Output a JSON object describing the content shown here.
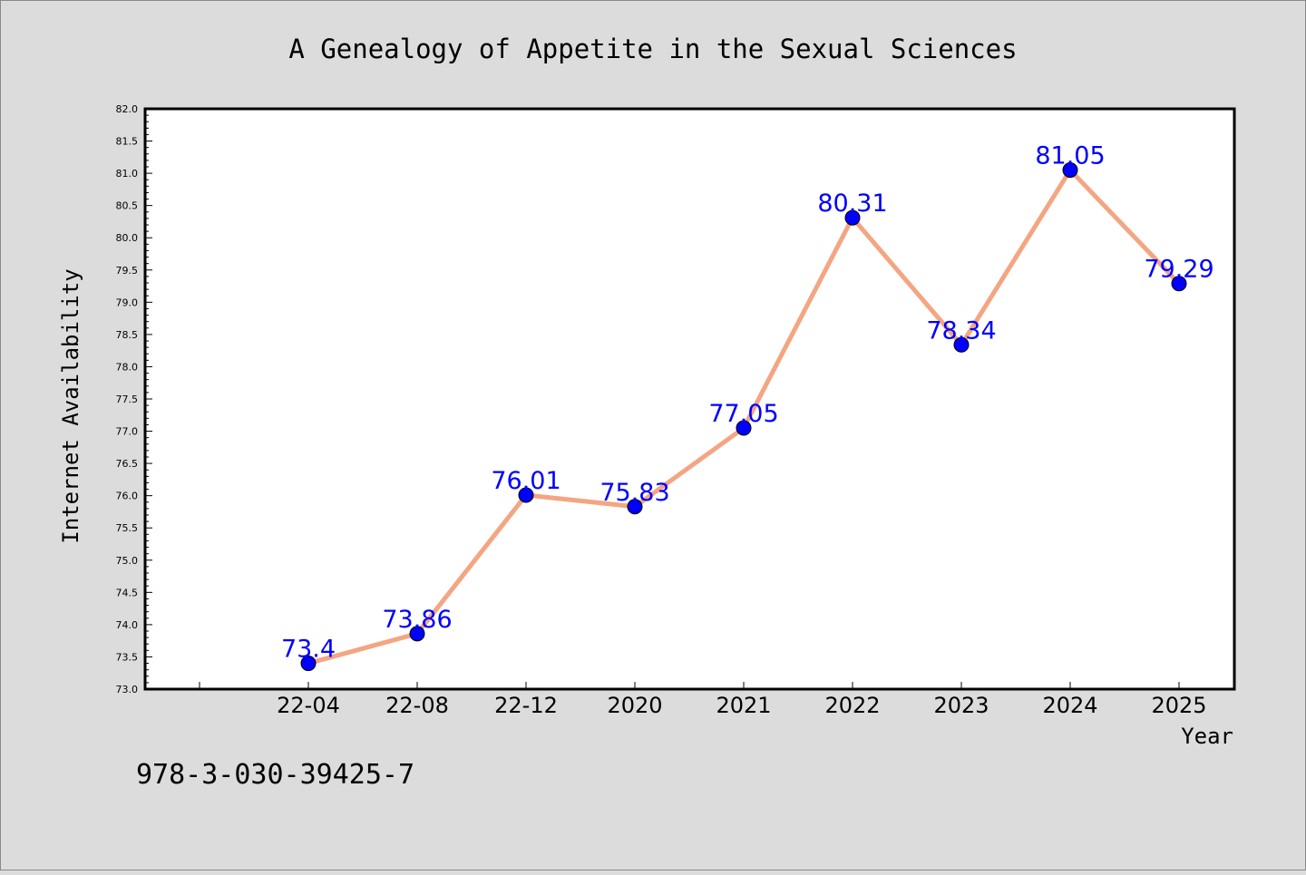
{
  "chart_data": {
    "type": "line",
    "title": "A Genealogy of Appetite in the Sexual Sciences",
    "xlabel": "Year",
    "ylabel": "Internet Availability",
    "categories": [
      "22-04",
      "22-08",
      "22-12",
      "2020",
      "2021",
      "2022",
      "2023",
      "2024",
      "2025"
    ],
    "series": [
      {
        "values": [
          73.4,
          73.86,
          76.01,
          75.83,
          77.05,
          80.31,
          78.34,
          81.05,
          79.29
        ],
        "labels": [
          "73.4",
          "73.86",
          "76.01",
          "75.83",
          "77.05",
          "80.31",
          "78.34",
          "81.05",
          "79.29"
        ],
        "line_color": "#f4a582",
        "marker_color": "#0000ff"
      }
    ],
    "ylim": [
      73.0,
      82.0
    ],
    "y_ticks": [
      "73.0",
      "73.5",
      "74.0",
      "74.5",
      "75.0",
      "75.5",
      "76.0",
      "76.5",
      "77.0",
      "77.5",
      "78.0",
      "78.5",
      "79.0",
      "79.5",
      "80.0",
      "80.5",
      "81.0",
      "81.5",
      "82.0"
    ],
    "grid": false,
    "legend": "none"
  },
  "footer": {
    "isbn": "978-3-030-39425-7"
  },
  "colors": {
    "background": "#dcdcdc",
    "plot_background": "#ffffff",
    "line": "#f4a582",
    "marker": "#0000ff",
    "data_label": "#0000ff"
  }
}
